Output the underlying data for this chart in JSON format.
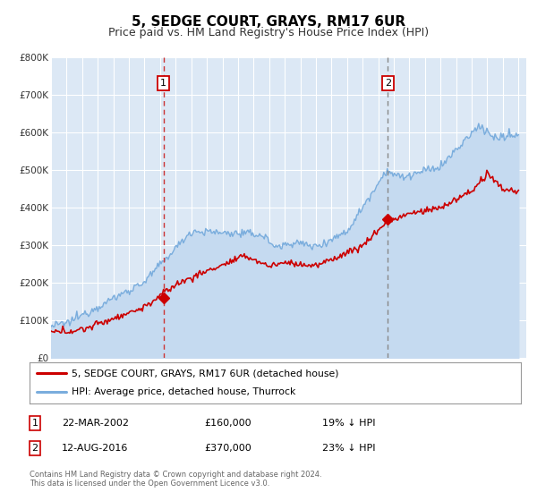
{
  "title": "5, SEDGE COURT, GRAYS, RM17 6UR",
  "subtitle": "Price paid vs. HM Land Registry's House Price Index (HPI)",
  "title_fontsize": 11,
  "subtitle_fontsize": 9,
  "background_color": "#ffffff",
  "plot_bg_color": "#dce8f5",
  "grid_color": "#ffffff",
  "hpi_color": "#7aaddd",
  "hpi_fill_color": "#c5daf0",
  "price_color": "#cc0000",
  "marker_color": "#cc0000",
  "vline_color_1": "#cc3333",
  "vline_color_2": "#888888",
  "ylim": [
    0,
    800000
  ],
  "yticks": [
    0,
    100000,
    200000,
    300000,
    400000,
    500000,
    600000,
    700000,
    800000
  ],
  "xmin": 1995.0,
  "xmax": 2025.5,
  "transaction1_x": 2002.22,
  "transaction1_y": 160000,
  "transaction2_x": 2016.62,
  "transaction2_y": 370000,
  "legend_label_price": "5, SEDGE COURT, GRAYS, RM17 6UR (detached house)",
  "legend_label_hpi": "HPI: Average price, detached house, Thurrock",
  "note1_num": "1",
  "note1_date": "22-MAR-2002",
  "note1_price": "£160,000",
  "note1_hpi": "19% ↓ HPI",
  "note2_num": "2",
  "note2_date": "12-AUG-2016",
  "note2_price": "£370,000",
  "note2_hpi": "23% ↓ HPI",
  "footer1": "Contains HM Land Registry data © Crown copyright and database right 2024.",
  "footer2": "This data is licensed under the Open Government Licence v3.0."
}
